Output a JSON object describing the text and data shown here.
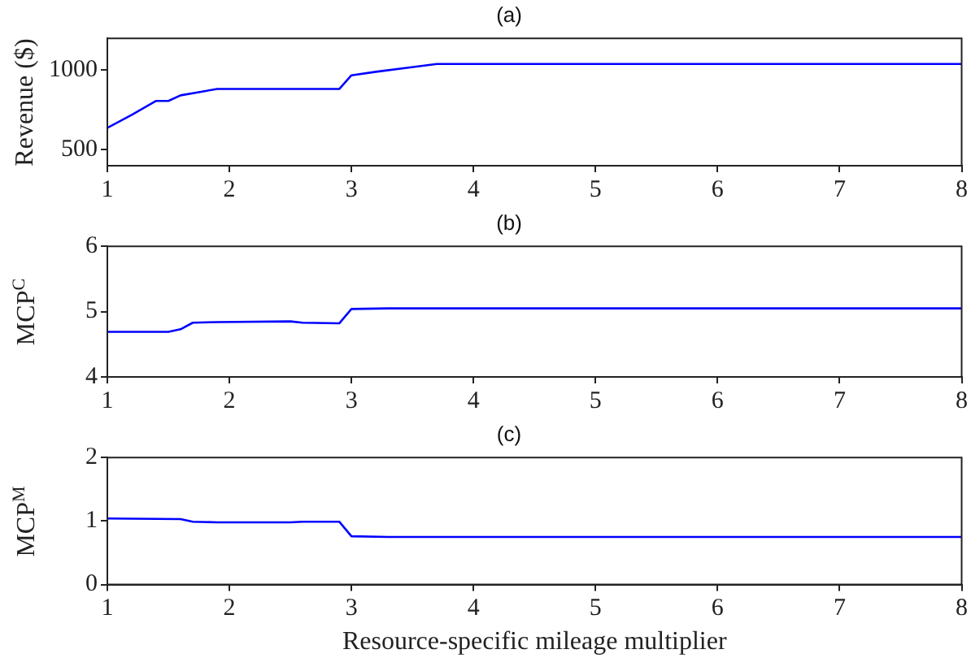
{
  "chart_data": [
    {
      "type": "line",
      "title": "(a)",
      "ylabel": "Revenue ($)",
      "xlim": [
        1,
        8
      ],
      "xticks": [
        1,
        2,
        3,
        4,
        5,
        6,
        7,
        8
      ],
      "ylim": [
        400,
        1200
      ],
      "yticks": [
        500,
        1000
      ],
      "grid": false,
      "legend": false,
      "marker": "none",
      "line_style": "solid",
      "series": [
        {
          "color": "#0000ff",
          "x": [
            1,
            1.2,
            1.4,
            1.5,
            1.6,
            1.9,
            2.5,
            2.9,
            3.0,
            3.2,
            3.7,
            8
          ],
          "values": [
            638,
            720,
            807,
            807,
            842,
            882,
            882,
            882,
            968,
            990,
            1039,
            1039
          ]
        }
      ]
    },
    {
      "type": "line",
      "title": "(b)",
      "ylabel": "MCP$^{C}$",
      "xlim": [
        1,
        8
      ],
      "xticks": [
        1,
        2,
        3,
        4,
        5,
        6,
        7,
        8
      ],
      "ylim": [
        4,
        6
      ],
      "yticks": [
        4,
        5,
        6
      ],
      "grid": false,
      "legend": false,
      "marker": "none",
      "line_style": "solid",
      "series": [
        {
          "color": "#0000ff",
          "x": [
            1,
            1.5,
            1.6,
            1.7,
            1.9,
            2.5,
            2.6,
            2.9,
            3.0,
            3.3,
            8
          ],
          "values": [
            4.69,
            4.69,
            4.73,
            4.83,
            4.84,
            4.85,
            4.83,
            4.82,
            5.04,
            5.05,
            5.05
          ]
        }
      ]
    },
    {
      "type": "line",
      "title": "(c)",
      "xlabel": "Resource-specific mileage multiplier",
      "ylabel": "MCP$^{M}$",
      "xlim": [
        1,
        8
      ],
      "xticks": [
        1,
        2,
        3,
        4,
        5,
        6,
        7,
        8
      ],
      "ylim": [
        0,
        2
      ],
      "yticks": [
        0,
        1,
        2
      ],
      "grid": false,
      "legend": false,
      "marker": "none",
      "line_style": "solid",
      "series": [
        {
          "color": "#0000ff",
          "x": [
            1,
            1.6,
            1.7,
            1.9,
            2.5,
            2.6,
            2.9,
            3.0,
            3.3,
            8
          ],
          "values": [
            1.04,
            1.03,
            0.99,
            0.98,
            0.98,
            0.99,
            0.99,
            0.76,
            0.75,
            0.75
          ]
        }
      ]
    }
  ]
}
